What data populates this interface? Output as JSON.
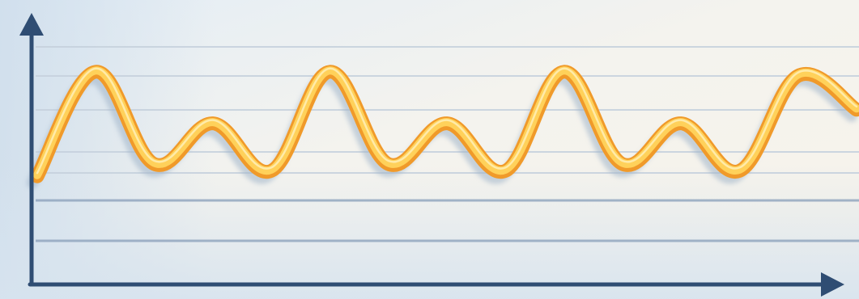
{
  "illustration": {
    "subject": "wave-line-on-axes",
    "colors": {
      "paper_light": "#f6f4ee",
      "paper_blue": "#dce8f2",
      "rule_line": "#c7d2de",
      "rule_line_dark": "#8ea3bd",
      "axis": "#2f4d73",
      "wave_orange": "#f09a2a",
      "wave_yellow": "#ffd15a",
      "wave_shadow": "#9fb3c8"
    },
    "wave_levels": [
      0.13,
      0.9,
      0.22,
      0.52,
      0.17,
      0.9,
      0.22,
      0.52,
      0.17,
      0.9,
      0.22,
      0.52,
      0.17,
      0.87,
      0.62
    ]
  }
}
